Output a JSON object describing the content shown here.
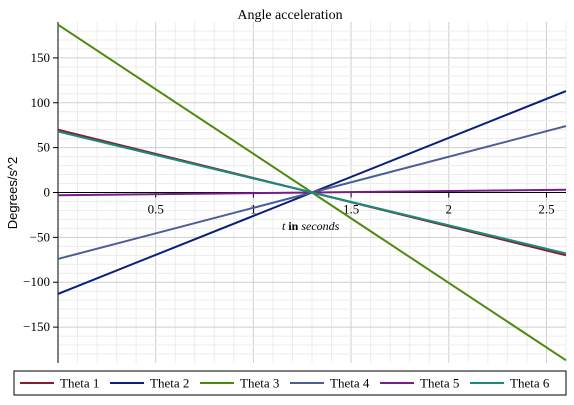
{
  "chart_data": {
    "type": "line",
    "title": "Angle acceleration",
    "xlabel": {
      "var": "t",
      "word": "in",
      "unit": "seconds"
    },
    "ylabel": "Degrees/s^2",
    "xlim": [
      0,
      2.6
    ],
    "ylim": [
      -190,
      190
    ],
    "x_ticks": [
      0.5,
      1,
      1.5,
      2,
      2.5
    ],
    "x_tick_labels": [
      "0.5",
      "1",
      "1.5",
      "2",
      "2.5"
    ],
    "y_ticks": [
      150,
      100,
      50,
      0,
      -50,
      -100,
      -150
    ],
    "y_tick_labels": [
      "150",
      "100",
      "50",
      "0",
      "−50",
      "−100",
      "−150"
    ],
    "grid": true,
    "legend": "bottom",
    "series": [
      {
        "name": "Theta 1",
        "color": "#8b1a2b",
        "x": [
          0,
          2.6
        ],
        "y": [
          70,
          -70
        ]
      },
      {
        "name": "Theta 2",
        "color": "#0d1f7a",
        "x": [
          0,
          2.6
        ],
        "y": [
          -113,
          113
        ]
      },
      {
        "name": "Theta 3",
        "color": "#4e8a0e",
        "x": [
          0,
          2.6
        ],
        "y": [
          187,
          -187
        ]
      },
      {
        "name": "Theta 4",
        "color": "#4a5f96",
        "x": [
          0,
          2.6
        ],
        "y": [
          -74,
          74
        ]
      },
      {
        "name": "Theta 5",
        "color": "#7a1c8a",
        "x": [
          0,
          2.6
        ],
        "y": [
          -3,
          3
        ]
      },
      {
        "name": "Theta 6",
        "color": "#1a8a7a",
        "x": [
          0,
          2.6
        ],
        "y": [
          68,
          -68
        ]
      }
    ]
  }
}
